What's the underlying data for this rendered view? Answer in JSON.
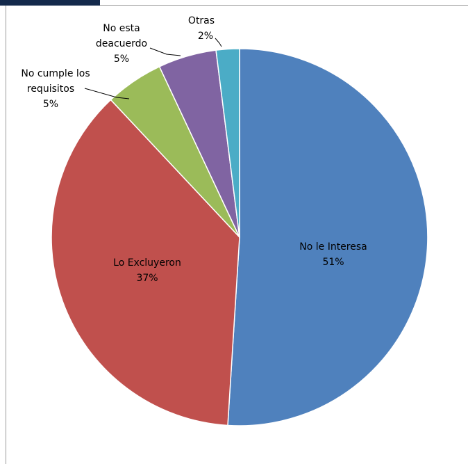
{
  "chart_data": {
    "type": "pie",
    "title": "",
    "start_angle_deg": 0,
    "direction": "clockwise",
    "legend": "none",
    "slices": [
      {
        "name": "No le Interesa",
        "value": 51,
        "label_line1": "No le Interesa",
        "label_line2": "51%",
        "color": "#4f81bd",
        "label_inside": true
      },
      {
        "name": "Lo Excluyeron",
        "value": 37,
        "label_line1": "Lo Excluyeron",
        "label_line2": "37%",
        "color": "#c0504d",
        "label_inside": true
      },
      {
        "name": "No cumple los requisitos",
        "value": 5,
        "label_line1": "No cumple los",
        "label_line2": "requisitos",
        "label_line3": "5%",
        "color": "#9bbb59",
        "label_inside": false
      },
      {
        "name": "No esta deacuerdo",
        "value": 5,
        "label_line1": "No esta",
        "label_line2": "deacuerdo",
        "label_line3": "5%",
        "color": "#8064a2",
        "label_inside": false
      },
      {
        "name": "Otras",
        "value": 2,
        "label_line1": "Otras",
        "label_line2": "2%",
        "color": "#4bacc6",
        "label_inside": false
      }
    ]
  },
  "colors": {
    "corner_bar": "#13294b",
    "frame_rule": "#9a9a9a",
    "leader_line": "#000000"
  }
}
